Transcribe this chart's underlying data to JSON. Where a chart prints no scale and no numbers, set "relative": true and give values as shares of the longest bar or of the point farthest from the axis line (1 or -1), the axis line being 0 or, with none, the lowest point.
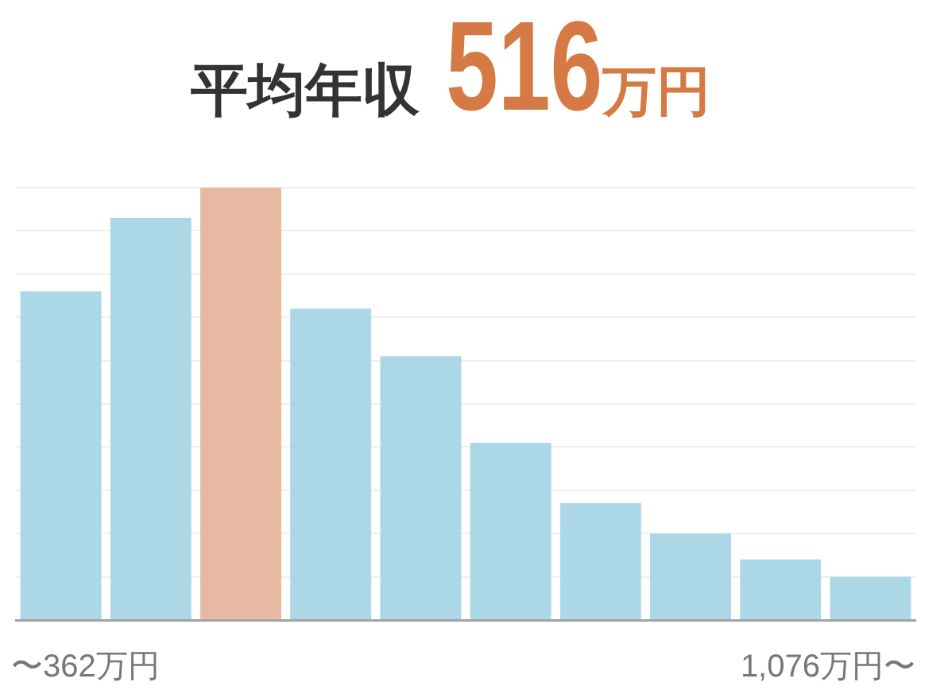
{
  "chart_data": {
    "type": "bar",
    "title": "平均年収 516万円",
    "categories": [
      "〜362万円",
      null,
      null,
      null,
      null,
      null,
      null,
      null,
      null,
      "1,076万円〜"
    ],
    "values": [
      0.76,
      0.93,
      1,
      0.72,
      0.61,
      0.41,
      0.27,
      0.2,
      0.14,
      0.1
    ],
    "colors": [
      "#acd7e6",
      "#acd7e6",
      "#e7b9a2",
      "#acd7e6",
      "#acd7e6",
      "#acd7e6",
      "#acd7e6",
      "#acd7e6",
      "#acd7e6",
      "#acd7e6"
    ],
    "relative": true,
    "grid": "y"
  }
}
